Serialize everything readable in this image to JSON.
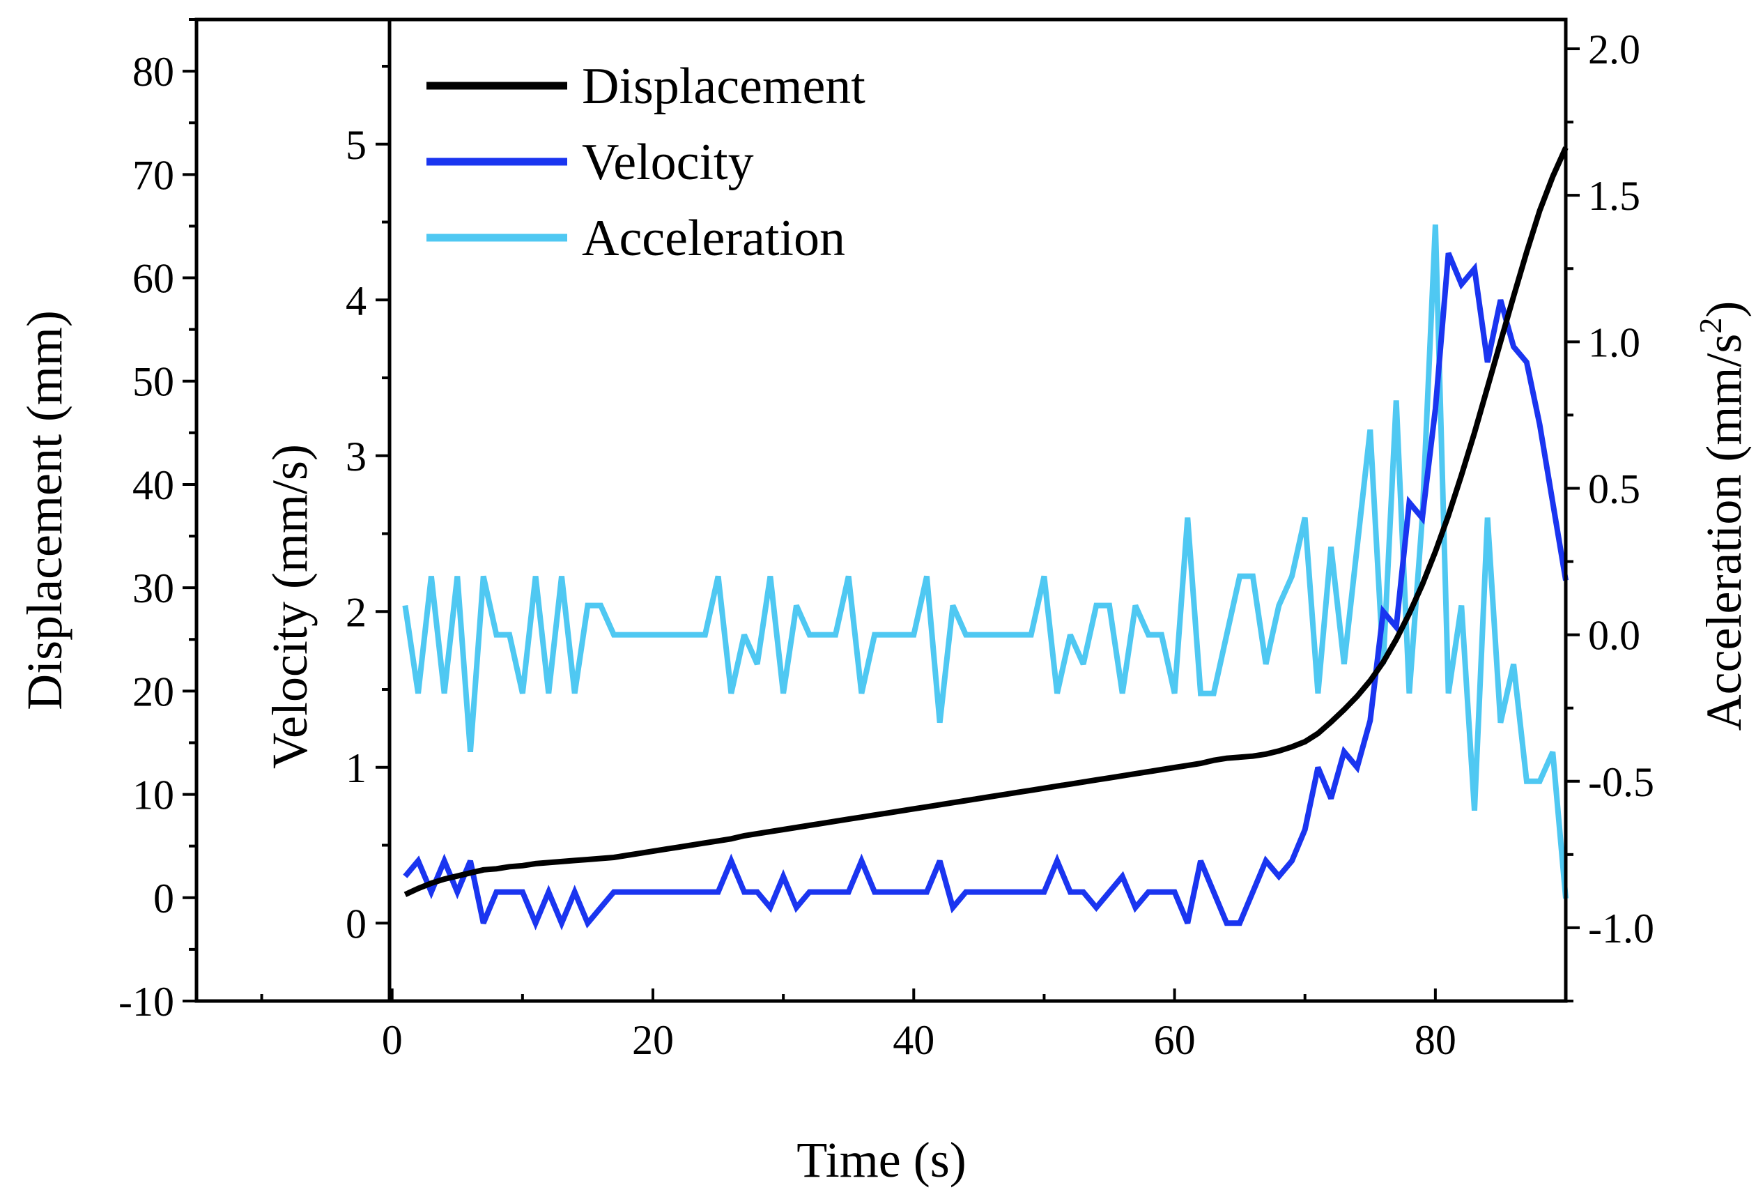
{
  "chart_data": {
    "type": "line",
    "xlabel": "Time (s)",
    "x_ticks": [
      "0",
      "20",
      "40",
      "60",
      "80"
    ],
    "xlim": [
      -15,
      90
    ],
    "axes": {
      "displacement": {
        "label": "Displacement (mm)",
        "range": [
          -10,
          85
        ],
        "ticks": [
          "-10",
          "0",
          "10",
          "20",
          "30",
          "40",
          "50",
          "60",
          "70",
          "80"
        ]
      },
      "velocity": {
        "label": "Velocity (mm/s)",
        "range": [
          -0.5,
          5.8
        ],
        "ticks": [
          "0",
          "1",
          "2",
          "3",
          "4",
          "5"
        ]
      },
      "acceleration": {
        "label_main": "Acceleration (mm/s",
        "label_sup": "2",
        "label_end": ")",
        "range": [
          -1.25,
          2.1
        ],
        "ticks": [
          "-1.0",
          "-0.5",
          "0.0",
          "0.5",
          "1.0",
          "1.5",
          "2.0"
        ]
      }
    },
    "legend": [
      "Displacement",
      "Velocity",
      "Acceleration"
    ],
    "colors": {
      "displacement": "#000000",
      "velocity": "#1a35f0",
      "acceleration": "#4fc8f2"
    },
    "series": [
      {
        "name": "Displacement",
        "axis": "displacement",
        "x": [
          1,
          2,
          3,
          4,
          5,
          6,
          7,
          8,
          9,
          10,
          11,
          12,
          13,
          14,
          15,
          16,
          17,
          18,
          19,
          20,
          21,
          22,
          23,
          24,
          25,
          26,
          27,
          28,
          29,
          30,
          31,
          32,
          33,
          34,
          35,
          36,
          37,
          38,
          39,
          40,
          41,
          42,
          43,
          44,
          45,
          46,
          47,
          48,
          49,
          50,
          51,
          52,
          53,
          54,
          55,
          56,
          57,
          58,
          59,
          60,
          61,
          62,
          63,
          64,
          65,
          66,
          67,
          68,
          69,
          70,
          71,
          72,
          73,
          74,
          75,
          76,
          77,
          78,
          79,
          80,
          81,
          82,
          83,
          84,
          85,
          86,
          87,
          88,
          89,
          90
        ],
        "values": [
          0.3,
          0.9,
          1.4,
          1.8,
          2.1,
          2.4,
          2.7,
          2.8,
          3.0,
          3.1,
          3.3,
          3.4,
          3.5,
          3.6,
          3.7,
          3.8,
          3.9,
          4.1,
          4.3,
          4.5,
          4.7,
          4.9,
          5.1,
          5.3,
          5.5,
          5.7,
          6.0,
          6.2,
          6.4,
          6.6,
          6.8,
          7.0,
          7.2,
          7.4,
          7.6,
          7.8,
          8.0,
          8.2,
          8.4,
          8.6,
          8.8,
          9.0,
          9.2,
          9.4,
          9.6,
          9.8,
          10.0,
          10.2,
          10.4,
          10.6,
          10.8,
          11.0,
          11.2,
          11.4,
          11.6,
          11.8,
          12.0,
          12.2,
          12.4,
          12.6,
          12.8,
          13.0,
          13.3,
          13.5,
          13.6,
          13.7,
          13.9,
          14.2,
          14.6,
          15.1,
          15.9,
          17.0,
          18.2,
          19.5,
          21.0,
          22.8,
          25.0,
          27.5,
          30.3,
          33.5,
          37.0,
          40.9,
          45.0,
          49.4,
          53.8,
          58.2,
          62.5,
          66.5,
          69.8,
          72.6
        ]
      },
      {
        "name": "Velocity",
        "axis": "velocity",
        "x": [
          1,
          2,
          3,
          4,
          5,
          6,
          7,
          8,
          9,
          10,
          11,
          12,
          13,
          14,
          15,
          16,
          17,
          18,
          19,
          20,
          21,
          22,
          23,
          24,
          25,
          26,
          27,
          28,
          29,
          30,
          31,
          32,
          33,
          34,
          35,
          36,
          37,
          38,
          39,
          40,
          41,
          42,
          43,
          44,
          45,
          46,
          47,
          48,
          49,
          50,
          51,
          52,
          53,
          54,
          55,
          56,
          57,
          58,
          59,
          60,
          61,
          62,
          63,
          64,
          65,
          66,
          67,
          68,
          69,
          70,
          71,
          72,
          73,
          74,
          75,
          76,
          77,
          78,
          79,
          80,
          81,
          82,
          83,
          84,
          85,
          86,
          87,
          88,
          89,
          90
        ],
        "values": [
          0.3,
          0.4,
          0.2,
          0.4,
          0.2,
          0.4,
          0.0,
          0.2,
          0.2,
          0.2,
          0.0,
          0.2,
          0.0,
          0.2,
          0.0,
          0.1,
          0.2,
          0.2,
          0.2,
          0.2,
          0.2,
          0.2,
          0.2,
          0.2,
          0.2,
          0.4,
          0.2,
          0.2,
          0.1,
          0.3,
          0.1,
          0.2,
          0.2,
          0.2,
          0.2,
          0.4,
          0.2,
          0.2,
          0.2,
          0.2,
          0.2,
          0.4,
          0.1,
          0.2,
          0.2,
          0.2,
          0.2,
          0.2,
          0.2,
          0.2,
          0.4,
          0.2,
          0.2,
          0.1,
          0.2,
          0.3,
          0.1,
          0.2,
          0.2,
          0.2,
          0.0,
          0.4,
          0.2,
          0.0,
          0.0,
          0.2,
          0.4,
          0.3,
          0.4,
          0.6,
          1.0,
          0.8,
          1.1,
          1.0,
          1.3,
          2.0,
          1.9,
          2.7,
          2.6,
          3.3,
          4.3,
          4.1,
          4.2,
          3.6,
          4.0,
          3.7,
          3.6,
          3.2,
          2.7,
          2.2
        ]
      },
      {
        "name": "Acceleration",
        "axis": "acceleration",
        "x": [
          1,
          2,
          3,
          4,
          5,
          6,
          7,
          8,
          9,
          10,
          11,
          12,
          13,
          14,
          15,
          16,
          17,
          18,
          19,
          20,
          21,
          22,
          23,
          24,
          25,
          26,
          27,
          28,
          29,
          30,
          31,
          32,
          33,
          34,
          35,
          36,
          37,
          38,
          39,
          40,
          41,
          42,
          43,
          44,
          45,
          46,
          47,
          48,
          49,
          50,
          51,
          52,
          53,
          54,
          55,
          56,
          57,
          58,
          59,
          60,
          61,
          62,
          63,
          64,
          65,
          66,
          67,
          68,
          69,
          70,
          71,
          72,
          73,
          74,
          75,
          76,
          77,
          78,
          79,
          80,
          81,
          82,
          83,
          84,
          85,
          86,
          87,
          88,
          89,
          90
        ],
        "values": [
          0.1,
          -0.2,
          0.2,
          -0.2,
          0.2,
          -0.4,
          0.2,
          0.0,
          0.0,
          -0.2,
          0.2,
          -0.2,
          0.2,
          -0.2,
          0.1,
          0.1,
          0.0,
          0.0,
          0.0,
          0.0,
          0.0,
          0.0,
          0.0,
          0.0,
          0.2,
          -0.2,
          0.0,
          -0.1,
          0.2,
          -0.2,
          0.1,
          0.0,
          0.0,
          0.0,
          0.2,
          -0.2,
          0.0,
          0.0,
          0.0,
          0.0,
          0.2,
          -0.3,
          0.1,
          0.0,
          0.0,
          0.0,
          0.0,
          0.0,
          0.0,
          0.2,
          -0.2,
          0.0,
          -0.1,
          0.1,
          0.1,
          -0.2,
          0.1,
          0.0,
          0.0,
          -0.2,
          0.4,
          -0.2,
          -0.2,
          0.0,
          0.2,
          0.2,
          -0.1,
          0.1,
          0.2,
          0.4,
          -0.2,
          0.3,
          -0.1,
          0.3,
          0.7,
          -0.1,
          0.8,
          -0.2,
          0.4,
          1.4,
          -0.2,
          0.1,
          -0.6,
          0.4,
          -0.3,
          -0.1,
          -0.5,
          -0.5,
          -0.4,
          -0.9
        ]
      }
    ]
  }
}
